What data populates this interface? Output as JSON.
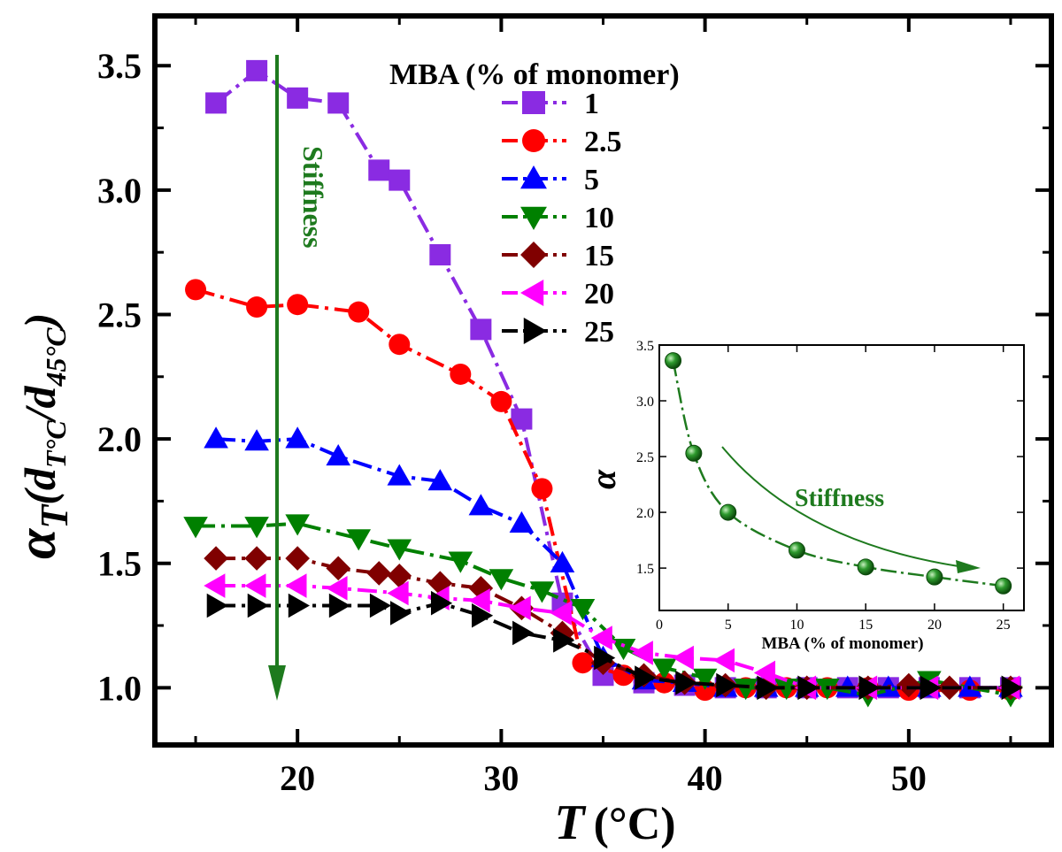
{
  "chart_data": [
    {
      "type": "line",
      "xlabel_symbol": "T",
      "xlabel_unit": "(°C)",
      "ylabel_alpha": "α",
      "ylabel_sub": "T",
      "ylabel_paren": "(d",
      "ylabel_sub1": "T°C",
      "ylabel_slash": "/d",
      "ylabel_sub2": "45°C",
      "ylabel_close": ")",
      "xlim": [
        13,
        57
      ],
      "ylim": [
        0.77,
        3.7
      ],
      "xticks": [
        20,
        30,
        40,
        50
      ],
      "xtick_labels": [
        "20",
        "30",
        "40",
        "50"
      ],
      "yticks": [
        1.0,
        1.5,
        2.0,
        2.5,
        3.0,
        3.5
      ],
      "ytick_labels": [
        "1.0",
        "1.5",
        "2.0",
        "2.5",
        "3.0",
        "3.5"
      ],
      "legend_title": "MBA (% of monomer)",
      "legend_position": "top-center",
      "annotation": "Stiffness",
      "series": [
        {
          "name": "1",
          "marker": "square",
          "color": "#8a2be2",
          "x": [
            16,
            18,
            20,
            22,
            24,
            25,
            27,
            29,
            31,
            33,
            35,
            37,
            39,
            41,
            43,
            45,
            47,
            49,
            51,
            53,
            55
          ],
          "y": [
            3.35,
            3.48,
            3.37,
            3.35,
            3.08,
            3.04,
            2.74,
            2.44,
            2.08,
            1.34,
            1.05,
            1.02,
            1.01,
            1.0,
            1.0,
            1.0,
            1.0,
            1.0,
            1.0,
            1.0,
            1.0
          ]
        },
        {
          "name": "2.5",
          "marker": "circle",
          "color": "#ff0000",
          "x": [
            15,
            18,
            20,
            23,
            25,
            28,
            30,
            32,
            34,
            36,
            38,
            40,
            42,
            44,
            46,
            48,
            50,
            53,
            55
          ],
          "y": [
            2.6,
            2.53,
            2.54,
            2.51,
            2.38,
            2.26,
            2.15,
            1.8,
            1.1,
            1.05,
            1.02,
            0.99,
            1.0,
            1.0,
            1.0,
            1.0,
            0.99,
            0.99,
            0.99
          ]
        },
        {
          "name": "5",
          "marker": "triangle-up",
          "color": "#0000ff",
          "x": [
            16,
            18,
            20,
            22,
            25,
            27,
            29,
            31,
            33,
            35,
            37,
            39,
            41,
            43,
            45,
            47,
            49,
            51,
            53,
            55
          ],
          "y": [
            2.0,
            1.99,
            2.0,
            1.93,
            1.85,
            1.83,
            1.73,
            1.66,
            1.5,
            1.12,
            1.03,
            1.02,
            1.0,
            1.0,
            1.0,
            1.0,
            1.0,
            1.0,
            1.0,
            1.0
          ]
        },
        {
          "name": "10",
          "marker": "triangle-down",
          "color": "#008000",
          "x": [
            15,
            18,
            20,
            23,
            25,
            28,
            30,
            32,
            34,
            36,
            38,
            40,
            42,
            44,
            46,
            48,
            51,
            55
          ],
          "y": [
            1.65,
            1.65,
            1.66,
            1.6,
            1.56,
            1.51,
            1.44,
            1.39,
            1.32,
            1.16,
            1.08,
            1.04,
            1.0,
            1.0,
            1.0,
            0.97,
            1.03,
            0.97
          ]
        },
        {
          "name": "15",
          "marker": "diamond",
          "color": "#800000",
          "x": [
            16,
            18,
            20,
            22,
            24,
            25,
            27,
            29,
            31,
            33,
            35,
            37,
            39,
            41,
            43,
            45,
            48,
            50,
            52,
            55
          ],
          "y": [
            1.52,
            1.52,
            1.52,
            1.48,
            1.46,
            1.45,
            1.42,
            1.4,
            1.32,
            1.22,
            1.1,
            1.05,
            1.02,
            1.01,
            1.0,
            1.0,
            1.0,
            1.01,
            1.0,
            1.0
          ]
        },
        {
          "name": "20",
          "marker": "triangle-left",
          "color": "#ff00ff",
          "x": [
            16,
            18,
            20,
            22,
            25,
            27,
            29,
            31,
            33,
            35,
            37,
            39,
            41,
            43,
            45,
            48,
            51,
            55
          ],
          "y": [
            1.41,
            1.41,
            1.41,
            1.4,
            1.38,
            1.36,
            1.35,
            1.32,
            1.3,
            1.2,
            1.14,
            1.12,
            1.11,
            1.06,
            1.0,
            1.0,
            1.0,
            1.0
          ]
        },
        {
          "name": "25",
          "marker": "triangle-right",
          "color": "#000000",
          "x": [
            16,
            18,
            20,
            22,
            24,
            25,
            27,
            29,
            31,
            33,
            35,
            37,
            39,
            41,
            43,
            45,
            48,
            51,
            55
          ],
          "y": [
            1.33,
            1.33,
            1.33,
            1.33,
            1.33,
            1.3,
            1.34,
            1.29,
            1.22,
            1.19,
            1.12,
            1.04,
            1.02,
            1.01,
            1.0,
            1.0,
            1.0,
            1.0,
            1.0
          ]
        }
      ]
    },
    {
      "type": "line",
      "inset": true,
      "xlabel": "MBA (% of monomer)",
      "ylabel": "α",
      "xlim": [
        0,
        26.5
      ],
      "ylim": [
        1.12,
        3.5
      ],
      "xticks": [
        0,
        5,
        10,
        15,
        20,
        25
      ],
      "xtick_labels": [
        "0",
        "5",
        "10",
        "15",
        "20",
        "25"
      ],
      "yticks": [
        1.5,
        2.0,
        2.5,
        3.0,
        3.5
      ],
      "ytick_labels": [
        "1.5",
        "2.0",
        "2.5",
        "3.0",
        "3.5"
      ],
      "annotation": "Stiffness",
      "series": [
        {
          "name": "alpha",
          "marker": "circle",
          "color": "#008000",
          "x": [
            1,
            2.5,
            5,
            10,
            15,
            20,
            25
          ],
          "y": [
            3.36,
            2.53,
            2.0,
            1.66,
            1.51,
            1.42,
            1.34
          ]
        }
      ]
    }
  ]
}
